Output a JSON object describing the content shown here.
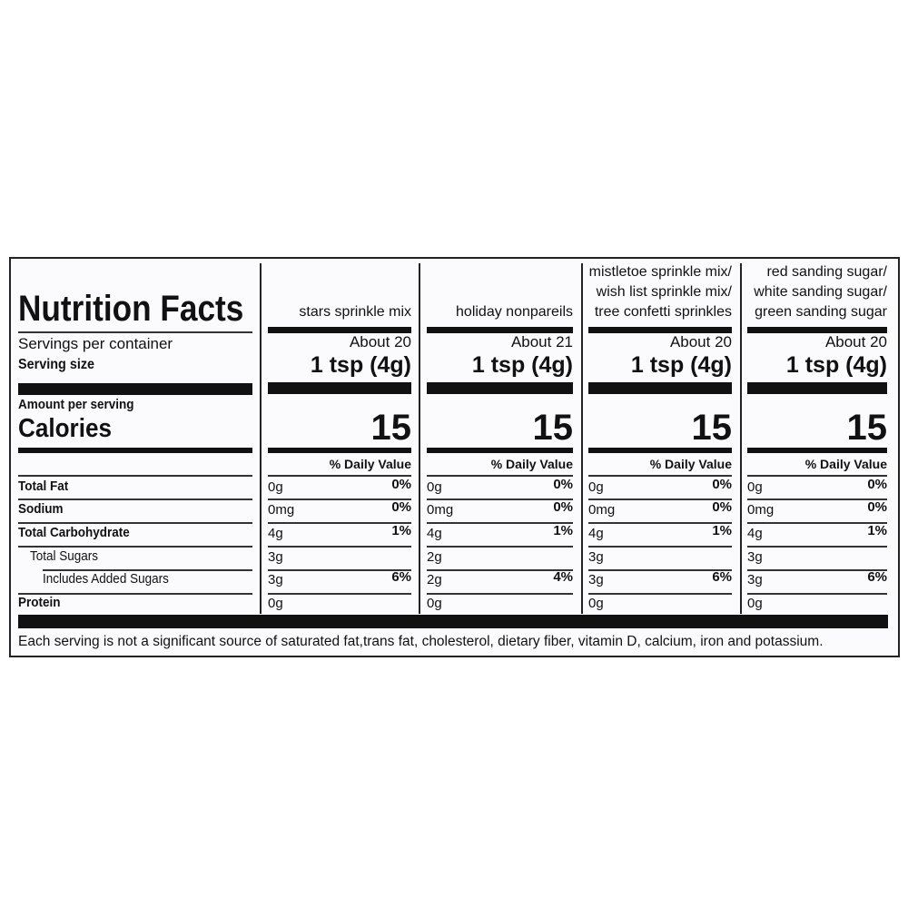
{
  "title": "Nutrition Facts",
  "labels": {
    "servings": "Servings per container",
    "serving_size": "Serving size",
    "amount": "Amount per serving",
    "calories": "Calories",
    "dv": "% Daily Value"
  },
  "nutrients": [
    "Total Fat",
    "Sodium",
    "Total Carbohydrate",
    "Total Sugars",
    "Includes Added Sugars",
    "Protein"
  ],
  "products": [
    {
      "name": [
        "",
        "",
        "stars sprinkle mix"
      ],
      "servings": "About 20",
      "size": "1 tsp (4g)",
      "calories": "15",
      "amounts": [
        "0g",
        "0mg",
        "4g",
        "3g",
        "3g",
        "0g"
      ],
      "dv": [
        "0%",
        "0%",
        "1%",
        "",
        "6%",
        ""
      ]
    },
    {
      "name": [
        "",
        "",
        "holiday nonpareils"
      ],
      "servings": "About 21",
      "size": "1 tsp (4g)",
      "calories": "15",
      "amounts": [
        "0g",
        "0mg",
        "4g",
        "2g",
        "2g",
        "0g"
      ],
      "dv": [
        "0%",
        "0%",
        "1%",
        "",
        "4%",
        ""
      ]
    },
    {
      "name": [
        "mistletoe sprinkle mix/",
        "wish list sprinkle mix/",
        "tree confetti sprinkles"
      ],
      "servings": "About 20",
      "size": "1 tsp (4g)",
      "calories": "15",
      "amounts": [
        "0g",
        "0mg",
        "4g",
        "3g",
        "3g",
        "0g"
      ],
      "dv": [
        "0%",
        "0%",
        "1%",
        "",
        "6%",
        ""
      ]
    },
    {
      "name": [
        "red sanding sugar/",
        "white sanding sugar/",
        "green sanding sugar"
      ],
      "servings": "About 20",
      "size": "1 tsp (4g)",
      "calories": "15",
      "amounts": [
        "0g",
        "0mg",
        "4g",
        "3g",
        "3g",
        "0g"
      ],
      "dv": [
        "0%",
        "0%",
        "1%",
        "",
        "6%",
        ""
      ]
    }
  ],
  "footnote": "Each serving is not a significant source of saturated fat,trans fat, cholesterol, dietary fiber, vitamin D, calcium, iron and potassium."
}
